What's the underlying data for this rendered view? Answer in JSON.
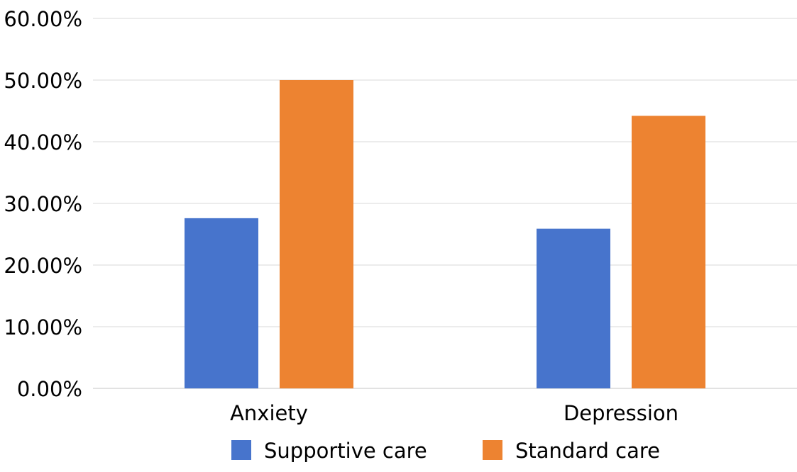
{
  "chart_data": {
    "type": "bar",
    "title": "",
    "xlabel": "",
    "ylabel": "",
    "categories": [
      "Anxiety",
      "Depression"
    ],
    "series": [
      {
        "name": "Supportive care",
        "color": "#4774CC",
        "values": [
          27.6,
          25.9
        ]
      },
      {
        "name": "Standard care",
        "color": "#ED8331",
        "values": [
          50.0,
          44.2
        ]
      }
    ],
    "ylim": [
      0,
      60
    ],
    "yticks": [
      0,
      10,
      20,
      30,
      40,
      50,
      60
    ],
    "ytick_labels": [
      "0.00%",
      "10.00%",
      "20.00%",
      "30.00%",
      "40.00%",
      "50.00%",
      "60.00%"
    ],
    "grid": true,
    "legend_position": "bottom",
    "gridline_color": "#D9D9D9"
  }
}
